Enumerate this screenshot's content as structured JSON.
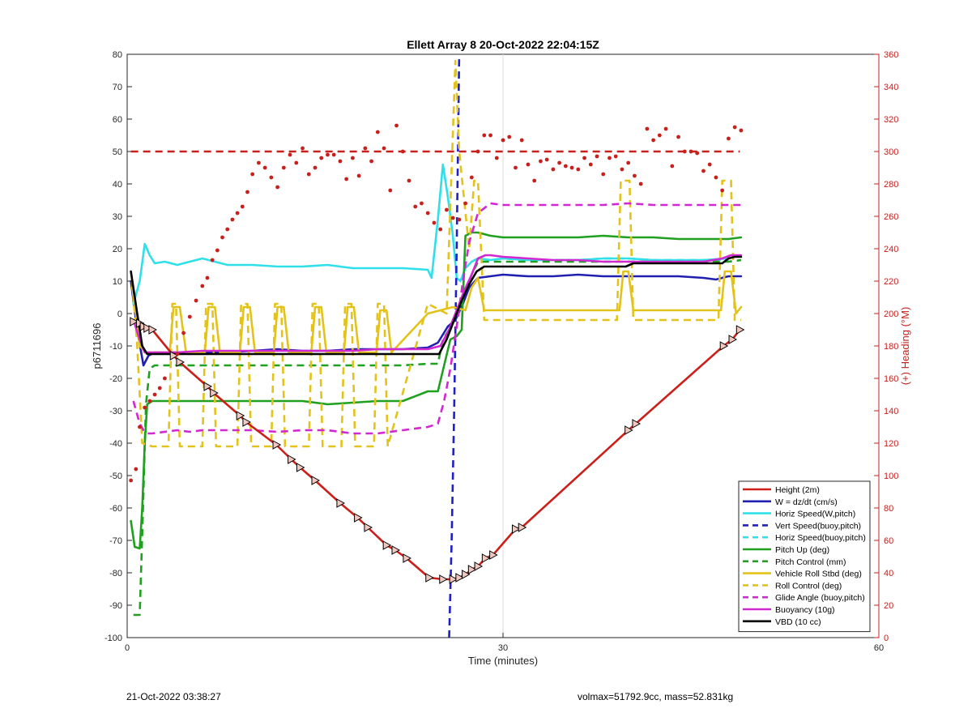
{
  "chart_data": {
    "type": "line",
    "title": "Ellett Array 8 20-Oct-2022 22:04:15Z",
    "xlabel": "Time (minutes)",
    "ylabel": "p6711696",
    "ylabel_right": "(+) Heading (°M)",
    "xlim": [
      0,
      60
    ],
    "ylim": [
      -100,
      80
    ],
    "ylim_right": [
      0,
      360
    ],
    "xticks": [
      0,
      30,
      60
    ],
    "yticks": [
      -100,
      -90,
      -80,
      -70,
      -60,
      -50,
      -40,
      -30,
      -20,
      -10,
      0,
      10,
      20,
      30,
      40,
      50,
      60,
      70,
      80
    ],
    "yticks_right": [
      0,
      20,
      40,
      60,
      80,
      100,
      120,
      140,
      160,
      180,
      200,
      220,
      240,
      260,
      280,
      300,
      320,
      340,
      360
    ],
    "grid": "x only at 30",
    "legend_position": "bottom-right",
    "series": [
      {
        "name": "Height (2m)",
        "color": "#cc1f1a",
        "style": "solid",
        "x": [
          0.5,
          1.0,
          1.3,
          1.6,
          2.0,
          3.7,
          4.2,
          6.4,
          6.9,
          9.0,
          9.5,
          11.9,
          13.1,
          13.8,
          15.0,
          17.0,
          18.4,
          19.2,
          20.7,
          21.4,
          22.3,
          24.1,
          25.2,
          26.0,
          26.5,
          27.0,
          27.5,
          28.0,
          28.6,
          29.2,
          31.0,
          31.5,
          40.0,
          40.6,
          47.6,
          48.3,
          48.9
        ],
        "y": [
          -2.5,
          -3.0,
          -4.0,
          -4.5,
          -5.0,
          -13.0,
          -15.0,
          -22.5,
          -24.5,
          -31.5,
          -33.5,
          -40.5,
          -45.0,
          -47.5,
          -51.5,
          -58.5,
          -63.0,
          -66.0,
          -71.5,
          -73.0,
          -75.5,
          -81.5,
          -82.0,
          -82.0,
          -81.5,
          -80.5,
          -79.0,
          -78.0,
          -75.5,
          -74.5,
          -66.5,
          -66.0,
          -36.0,
          -34.0,
          -10.0,
          -8.0,
          -5.0
        ]
      },
      {
        "name": "W = dz/dt (cm/s)",
        "color": "#1f20b0",
        "style": "solid",
        "x": [
          0.3,
          0.8,
          1.3,
          1.7,
          2.2,
          4,
          6,
          8,
          10,
          12,
          14,
          16,
          18,
          20,
          22,
          24,
          24.8,
          25.6,
          26.2,
          26.8,
          27.3,
          28.0,
          29.0,
          30,
          32,
          34,
          36,
          38,
          40,
          42,
          44,
          46,
          47,
          48,
          49
        ],
        "y": [
          10,
          -5,
          -16,
          -13,
          -12,
          -12,
          -12,
          -12,
          -11.5,
          -11,
          -11.5,
          -11.5,
          -11,
          -11,
          -11,
          -10.5,
          -9,
          -4,
          -2,
          3,
          8,
          11,
          11.5,
          12,
          11.5,
          11.5,
          12,
          11.5,
          11.5,
          11.5,
          11.5,
          11,
          10.5,
          11.5,
          11.5
        ]
      },
      {
        "name": "Horiz Speed(W,pitch)",
        "color": "#2fe0ea",
        "style": "solid",
        "x": [
          0.5,
          1.0,
          1.4,
          1.8,
          2.2,
          3,
          4,
          5,
          6,
          7,
          8,
          10,
          12,
          14,
          16,
          18,
          20,
          22,
          24,
          24.3,
          24.8,
          25.2,
          25.6,
          26.0,
          26.3,
          26.6,
          27.0,
          27.5,
          28.0,
          29,
          30,
          32,
          34,
          36,
          38,
          40,
          42,
          44,
          46,
          48
        ],
        "y": [
          3,
          10,
          21.5,
          18,
          15.5,
          16,
          15,
          16,
          17,
          16,
          15,
          15,
          14.5,
          14.5,
          15,
          14,
          14,
          14,
          13.5,
          11,
          29,
          46,
          36,
          24,
          11,
          10,
          14,
          16,
          17,
          16.5,
          17,
          16.5,
          16.5,
          16.5,
          17,
          17,
          16.5,
          16.5,
          16.5,
          17
        ]
      },
      {
        "name": "Vert Speed(buoy,pitch)",
        "color": "#1f20c8",
        "style": "dash",
        "x": [
          25.7,
          25.9,
          26.1,
          26.3,
          26.5
        ],
        "y": [
          -100,
          -70,
          -30,
          20,
          80
        ]
      },
      {
        "name": "Horiz Speed(buoy,pitch)",
        "color": "#2fe0ea",
        "style": "dash",
        "x": [
          27.5,
          28.0,
          29.0,
          30,
          32,
          34,
          36,
          38,
          40,
          42,
          44,
          46,
          48
        ],
        "y": [
          16,
          17,
          16.5,
          17,
          16.5,
          16.5,
          16.5,
          17,
          17,
          16.5,
          16.5,
          16.5,
          16.5
        ]
      },
      {
        "name": "Pitch Up (deg)",
        "color": "#1fa01f",
        "style": "solid",
        "x": [
          0.3,
          0.6,
          1.0,
          1.2,
          1.4,
          1.6,
          2.0,
          3,
          4,
          5,
          6,
          8,
          10,
          12,
          14,
          16,
          18,
          20,
          22,
          24,
          24.8,
          25.3,
          25.8,
          26.3,
          26.7,
          27.0,
          27.5,
          28.0,
          29,
          30,
          32,
          34,
          36,
          38,
          40,
          42,
          44,
          46,
          48,
          49
        ],
        "y": [
          -64,
          -72,
          -72.5,
          -60,
          -40,
          -28,
          -27,
          -27,
          -27,
          -27,
          -27,
          -27,
          -27,
          -27,
          -27,
          -28,
          -27.5,
          -27,
          -27,
          -24,
          -24,
          -16,
          -8,
          -7,
          -5,
          24,
          25,
          25,
          24,
          23.5,
          23.5,
          23.5,
          23.5,
          24,
          23.5,
          23.5,
          23,
          23,
          23,
          23.5
        ]
      },
      {
        "name": "Pitch Control (mm)",
        "color": "#1fa01f",
        "style": "dash",
        "x": [
          0.5,
          1.0,
          1.2,
          1.5,
          1.8,
          2.2,
          4,
          6,
          8,
          10,
          12,
          14,
          16,
          18,
          20,
          22,
          24,
          24.8,
          25.2,
          25.7,
          26.2,
          26.8,
          27.5,
          28,
          30,
          35,
          40,
          45,
          48,
          49
        ],
        "y": [
          -93,
          -93,
          -68,
          -28,
          -17,
          -16,
          -16,
          -16,
          -16,
          -16,
          -16,
          -16,
          -16,
          -16,
          -16,
          -16,
          -15.5,
          -15.5,
          -8,
          -5,
          0,
          5,
          12,
          16,
          16,
          16,
          16,
          16,
          16,
          16.5
        ]
      },
      {
        "name": "Vehicle Roll Stbd (deg)",
        "color": "#e3c21a",
        "style": "solid",
        "x": [
          0.4,
          0.7,
          1.0,
          1.5,
          2.5,
          3.4,
          3.7,
          4.2,
          4.7,
          6.2,
          6.5,
          7.0,
          7.4,
          9.0,
          9.3,
          9.8,
          10.2,
          11.7,
          12.0,
          12.5,
          12.9,
          14.7,
          15.0,
          15.5,
          15.9,
          17.3,
          17.6,
          18.1,
          18.5,
          19.9,
          20.2,
          20.7,
          21.1,
          24,
          26,
          27,
          27.5,
          28.0,
          28.5,
          29.0,
          30,
          35,
          39.3,
          39.6,
          40.0,
          40.4,
          45,
          47.4,
          47.7,
          48.2,
          48.6,
          49
        ],
        "y": [
          8,
          0,
          -10,
          -12,
          -12,
          -12,
          2,
          2,
          -12,
          -12,
          2,
          2,
          -12,
          -12,
          2,
          2,
          -12,
          -12,
          2,
          2,
          -12,
          -12,
          2,
          2,
          -12,
          -12,
          2,
          2,
          -12,
          -12,
          1,
          1,
          -12,
          0,
          2,
          1,
          8,
          11,
          1,
          1,
          1,
          1,
          1,
          13,
          13,
          1,
          1,
          1,
          13,
          13,
          0,
          2
        ]
      },
      {
        "name": "Roll Control (deg)",
        "color": "#e3c21a",
        "style": "dash",
        "x": [
          0.4,
          0.8,
          1.2,
          2.0,
          3.3,
          3.6,
          3.9,
          4.2,
          4.5,
          6.0,
          6.3,
          6.8,
          7.1,
          8.8,
          9.1,
          9.6,
          9.9,
          11.5,
          11.8,
          12.3,
          12.6,
          14.5,
          14.8,
          15.3,
          15.6,
          17.1,
          17.4,
          17.9,
          18.2,
          19.7,
          20.0,
          20.5,
          20.8,
          24,
          25.5,
          26.2,
          26.5,
          27.3,
          27.7,
          28.0,
          28.5,
          29,
          30,
          31,
          35,
          39.1,
          39.4,
          40.1,
          40.4,
          45,
          47.2,
          47.5,
          48.2,
          48.5,
          49
        ],
        "y": [
          10,
          -10,
          -40,
          -41,
          -41,
          3,
          3,
          -41,
          -41,
          -41,
          3,
          3,
          -41,
          -41,
          3,
          3,
          -41,
          -41,
          3,
          3,
          -41,
          -41,
          3,
          3,
          -41,
          -41,
          3,
          3,
          -41,
          -41,
          3,
          3,
          -41,
          3,
          0,
          78,
          50,
          20,
          41,
          41,
          -2,
          -2,
          -2,
          -2,
          -2,
          -2,
          41,
          41,
          -2,
          -2,
          -2,
          41,
          41,
          -2,
          -2
        ]
      },
      {
        "name": "Glide Angle (buoy,pitch)",
        "color": "#d228d2",
        "style": "dash",
        "x": [
          0.5,
          1.0,
          1.3,
          1.6,
          2.0,
          3,
          4,
          5,
          6,
          8,
          10,
          12,
          14,
          16,
          18,
          20,
          22,
          24,
          24.8,
          25.3,
          25.8,
          26.3,
          26.8,
          27.3,
          28.0,
          29,
          30,
          32,
          34,
          36,
          38,
          40,
          42,
          44,
          46,
          48,
          49
        ],
        "y": [
          -27,
          -34,
          -36,
          -37,
          -37,
          -36.5,
          -36,
          -36.5,
          -36,
          -36,
          -36,
          -36.5,
          -36,
          -36,
          -37,
          -37,
          -36,
          -35,
          -34,
          -27,
          -17,
          -4,
          10,
          22,
          31,
          34,
          33.5,
          33.5,
          33.5,
          33.5,
          33.5,
          34,
          33.5,
          33.5,
          33.5,
          33.5,
          33.5
        ]
      },
      {
        "name": "Buoyancy (10g)",
        "color": "#d228d2",
        "style": "solid",
        "x": [
          0.5,
          1.0,
          1.4,
          2.0,
          4,
          6,
          8,
          10,
          12,
          14,
          16,
          18,
          20,
          22,
          24,
          25.0,
          25.7,
          26.3,
          26.9,
          27.5,
          28.0,
          28.6,
          29,
          30,
          32,
          34,
          36,
          38,
          40,
          42,
          44,
          46,
          47.5,
          48.2,
          49
        ],
        "y": [
          -2,
          -8,
          -12,
          -12,
          -12,
          -11.5,
          -11.5,
          -11.5,
          -11.5,
          -11.5,
          -11.5,
          -11.5,
          -11,
          -11,
          -11,
          -10,
          -5,
          1,
          7,
          12,
          17,
          18,
          18,
          17.5,
          17,
          16.5,
          16.5,
          16,
          16,
          16,
          16,
          16,
          17,
          18,
          18
        ]
      },
      {
        "name": "VBD (10 cc)",
        "color": "#000000",
        "style": "solid",
        "x": [
          0.3,
          0.8,
          1.2,
          1.6,
          2.0,
          4,
          6,
          8,
          10,
          12,
          14,
          16,
          18,
          20,
          22,
          24,
          24.9,
          25.5,
          26.1,
          26.7,
          27.3,
          27.9,
          28.5,
          29,
          30,
          35,
          39.8,
          40.4,
          45,
          47.5,
          48.0,
          48.5,
          49
        ],
        "y": [
          13,
          0,
          -10,
          -12.5,
          -12.5,
          -12.5,
          -12.5,
          -12.5,
          -12.5,
          -12.5,
          -12.5,
          -12.5,
          -12.5,
          -12.5,
          -12.5,
          -12.5,
          -12.5,
          -8,
          -2,
          4,
          9,
          13,
          14.5,
          14.5,
          14.5,
          14.5,
          14.5,
          15.5,
          15.5,
          15.5,
          17,
          17.5,
          17.5
        ]
      }
    ],
    "heading": {
      "name": "(+) Heading (°M)",
      "color": "#c8201c",
      "x": [
        0.3,
        0.7,
        1.0,
        1.4,
        1.8,
        2.2,
        2.6,
        3.0,
        4.0,
        4.5,
        5.0,
        5.5,
        6.0,
        6.4,
        6.8,
        7.2,
        7.6,
        8.0,
        8.4,
        8.8,
        9.2,
        9.6,
        10.0,
        10.5,
        11.0,
        11.5,
        12.0,
        12.5,
        13.0,
        13.5,
        14.0,
        14.5,
        15.0,
        15.5,
        16.0,
        16.5,
        17.0,
        17.5,
        18.0,
        18.5,
        19.0,
        19.5,
        20.0,
        20.5,
        21.0,
        21.5,
        22.0,
        22.5,
        23.0,
        23.5,
        24.0,
        24.5,
        25.0,
        25.5,
        26.0,
        26.5,
        27.0,
        27.5,
        28.0,
        28.5,
        29.0,
        29.5,
        30.0,
        30.5,
        31.0,
        31.5,
        32.0,
        32.5,
        33.0,
        33.5,
        34.0,
        34.5,
        35.0,
        35.5,
        36.0,
        36.5,
        37.0,
        37.5,
        38.0,
        38.5,
        39.0,
        39.5,
        40.0,
        40.5,
        41.0,
        41.5,
        42.0,
        42.5,
        43.0,
        43.5,
        44.0,
        44.5,
        45.0,
        45.5,
        46.0,
        46.5,
        47.0,
        47.5,
        48.0,
        48.5,
        49.0
      ],
      "y": [
        97,
        104,
        130,
        142,
        146,
        150,
        154,
        160,
        175,
        188,
        198,
        208,
        217,
        222,
        233,
        239,
        247,
        252,
        258,
        262,
        266,
        275,
        286,
        293,
        290,
        284,
        278,
        290,
        298,
        293,
        302,
        286,
        290,
        296,
        298,
        298,
        294,
        283,
        296,
        285,
        302,
        294,
        312,
        302,
        276,
        316,
        300,
        282,
        266,
        268,
        262,
        256,
        252,
        264,
        259,
        258,
        268,
        284,
        300,
        310,
        310,
        296,
        307,
        309,
        290,
        307,
        292,
        282,
        294,
        295,
        289,
        293,
        291,
        290,
        289,
        296,
        292,
        297,
        286,
        296,
        297,
        289,
        293,
        285,
        280,
        314,
        307,
        310,
        314,
        291,
        309,
        300,
        300,
        299,
        288,
        292,
        284,
        276,
        308,
        315,
        313
      ]
    },
    "reference_line": {
      "name": "Heading target",
      "color": "#c8201c",
      "style": "dash",
      "y_right": 300
    }
  },
  "footer": {
    "left": "21-Oct-2022 03:38:27",
    "right": "volmax=51792.9cc, mass=52.831kg"
  },
  "legend": [
    "Height (2m)",
    "W = dz/dt (cm/s)",
    "Horiz Speed(W,pitch)",
    "Vert Speed(buoy,pitch)",
    "Horiz Speed(buoy,pitch)",
    "Pitch Up (deg)",
    "Pitch Control (mm)",
    "Vehicle Roll Stbd (deg)",
    "Roll Control (deg)",
    "Glide Angle (buoy,pitch)",
    "Buoyancy (10g)",
    "VBD (10 cc)"
  ]
}
